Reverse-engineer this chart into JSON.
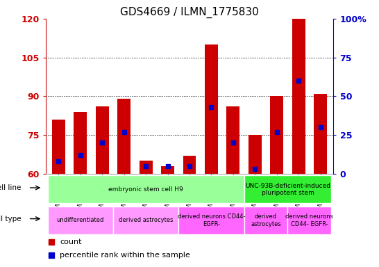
{
  "title": "GDS4669 / ILMN_1775830",
  "samples": [
    "GSM997555",
    "GSM997556",
    "GSM997557",
    "GSM997563",
    "GSM997564",
    "GSM997565",
    "GSM997566",
    "GSM997567",
    "GSM997568",
    "GSM997571",
    "GSM997572",
    "GSM997569",
    "GSM997570"
  ],
  "count_values": [
    81,
    84,
    86,
    89,
    65,
    63,
    67,
    110,
    86,
    75,
    90,
    120,
    91
  ],
  "percentile_values": [
    8,
    12,
    20,
    27,
    5,
    5,
    5,
    43,
    20,
    3,
    27,
    60,
    30
  ],
  "ymin": 60,
  "ymax": 120,
  "yticks": [
    60,
    75,
    90,
    105,
    120
  ],
  "right_yticks": [
    0,
    25,
    50,
    75,
    100
  ],
  "right_ytick_labels": [
    "0",
    "25",
    "50",
    "75",
    "100%"
  ],
  "bar_color": "#cc0000",
  "marker_color": "#0000cc",
  "tick_label_color_left": "#cc0000",
  "tick_label_color_right": "#0000cc",
  "cell_line_groups": [
    {
      "label": "embryonic stem cell H9",
      "start": 0,
      "end": 9,
      "color": "#99ff99"
    },
    {
      "label": "UNC-93B-deficient-induced\npluripotent stem",
      "start": 9,
      "end": 13,
      "color": "#33ee33"
    }
  ],
  "cell_type_groups": [
    {
      "label": "undifferentiated",
      "start": 0,
      "end": 3,
      "color": "#ff99ff"
    },
    {
      "label": "derived astrocytes",
      "start": 3,
      "end": 6,
      "color": "#ff99ff"
    },
    {
      "label": "derived neurons CD44-\nEGFR-",
      "start": 6,
      "end": 9,
      "color": "#ff66ff"
    },
    {
      "label": "derived\nastrocytes",
      "start": 9,
      "end": 11,
      "color": "#ff66ff"
    },
    {
      "label": "derived neurons\nCD44- EGFR-",
      "start": 11,
      "end": 13,
      "color": "#ff66ff"
    }
  ],
  "background_color": "#ffffff"
}
